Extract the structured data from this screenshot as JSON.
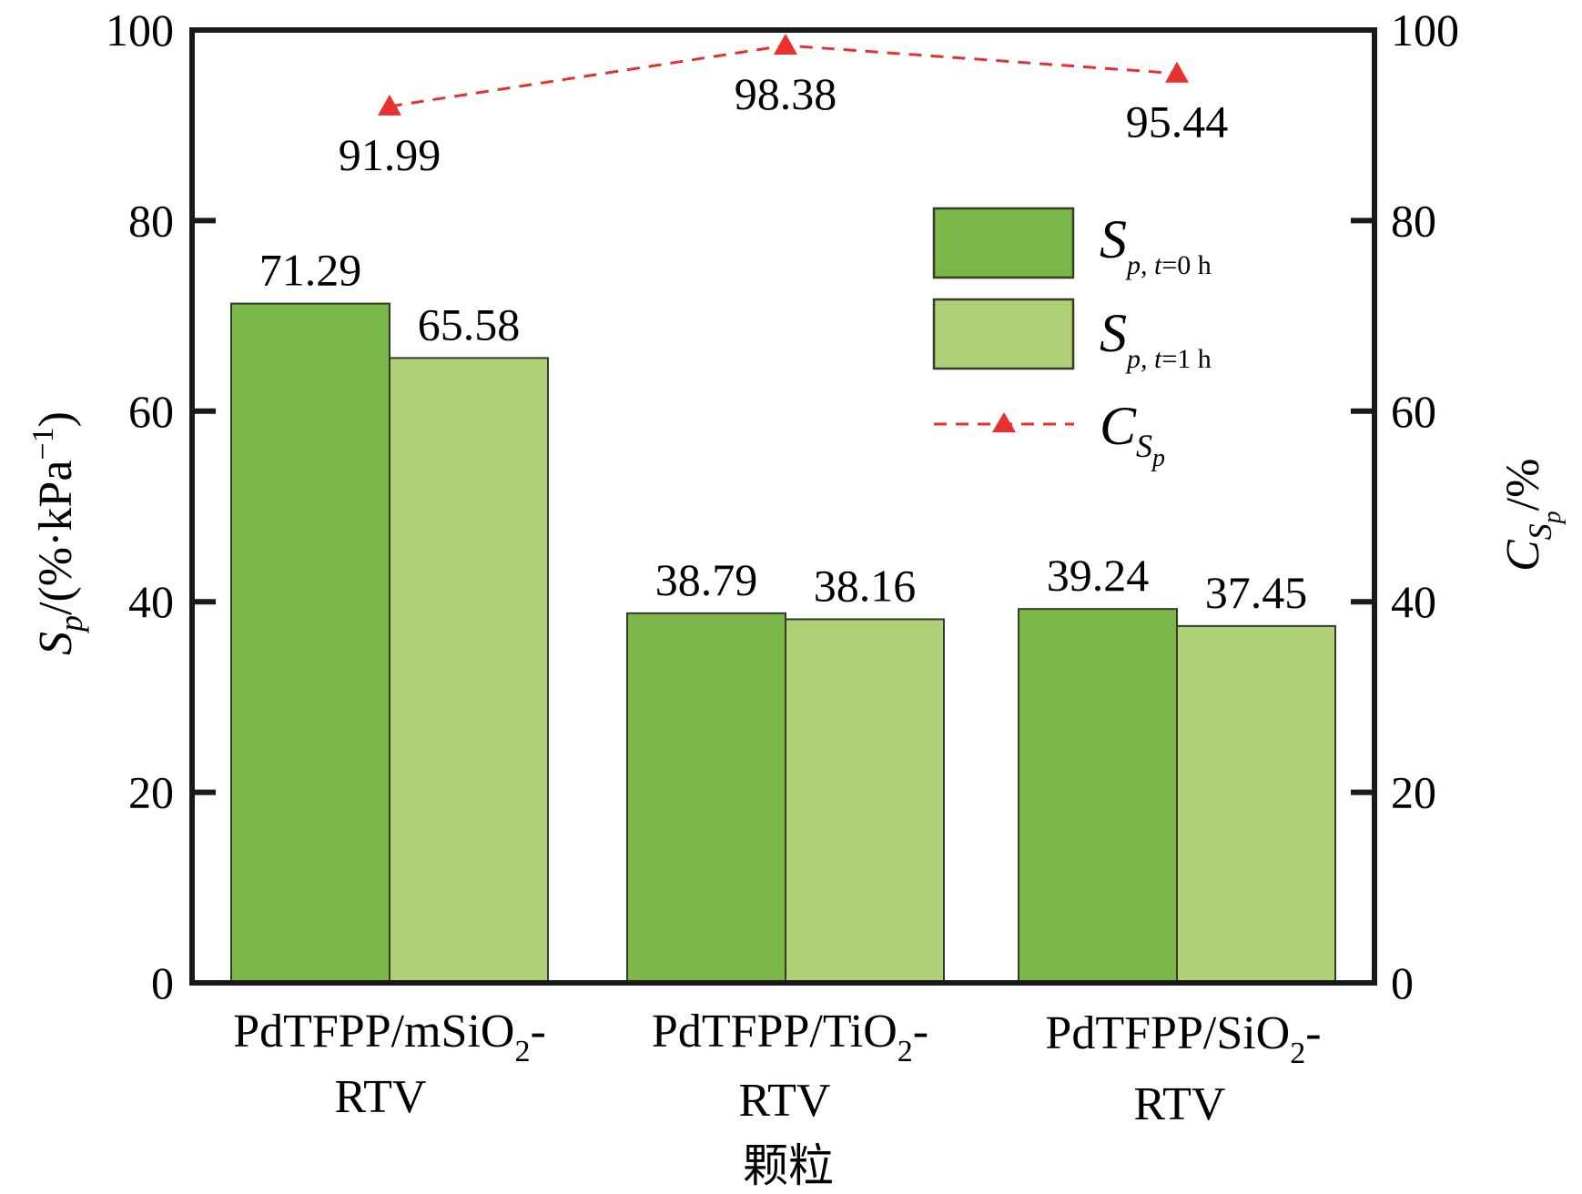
{
  "chart_data": {
    "type": "bar",
    "xlabel": "颗粒",
    "ylabel_left": {
      "main": "S",
      "sub": "p",
      "rest": "/(%·kPa",
      "sup": "−1",
      "close": ")"
    },
    "ylabel_right": {
      "main": "C",
      "sub": "S",
      "subsub": "p",
      "rest": "/%"
    },
    "ylim": [
      0,
      100
    ],
    "ylim_right": [
      0,
      100
    ],
    "yticks": [
      "0",
      "20",
      "40",
      "60",
      "80",
      "100"
    ],
    "ytick_values": [
      0,
      20,
      40,
      60,
      80,
      100
    ],
    "categories": [
      {
        "line1": "PdTFPP/mSiO",
        "sub": "2",
        "dash": "-",
        "line2": "RTV"
      },
      {
        "line1": "PdTFPP/TiO",
        "sub": "2",
        "dash": "-",
        "line2": "RTV"
      },
      {
        "line1": "PdTFPP/SiO",
        "sub": "2",
        "dash": "-",
        "line2": "RTV"
      }
    ],
    "series": [
      {
        "name": "S_p, t=0 h",
        "legend": {
          "main": "S",
          "sub": "p, ",
          "t": "t",
          "rest": "=0 h"
        },
        "color": "#7ab648",
        "values": [
          71.29,
          38.79,
          39.24
        ],
        "labels": [
          "71.29",
          "38.79",
          "39.24"
        ]
      },
      {
        "name": "S_p, t=1 h",
        "legend": {
          "main": "S",
          "sub": "p, ",
          "t": "t",
          "rest": "=1 h"
        },
        "color": "#aed077",
        "values": [
          65.58,
          38.16,
          37.45
        ],
        "labels": [
          "65.58",
          "38.16",
          "37.45"
        ]
      },
      {
        "name": "C_Sp",
        "type": "line",
        "axis": "right",
        "legend": {
          "main": "C",
          "sub": "S",
          "subsub": "p"
        },
        "color": "#e8312f",
        "values": [
          91.99,
          98.38,
          95.44
        ],
        "labels": [
          "91.99",
          "98.38",
          "95.44"
        ]
      }
    ],
    "legend_position": "upper-right",
    "grid": false
  }
}
